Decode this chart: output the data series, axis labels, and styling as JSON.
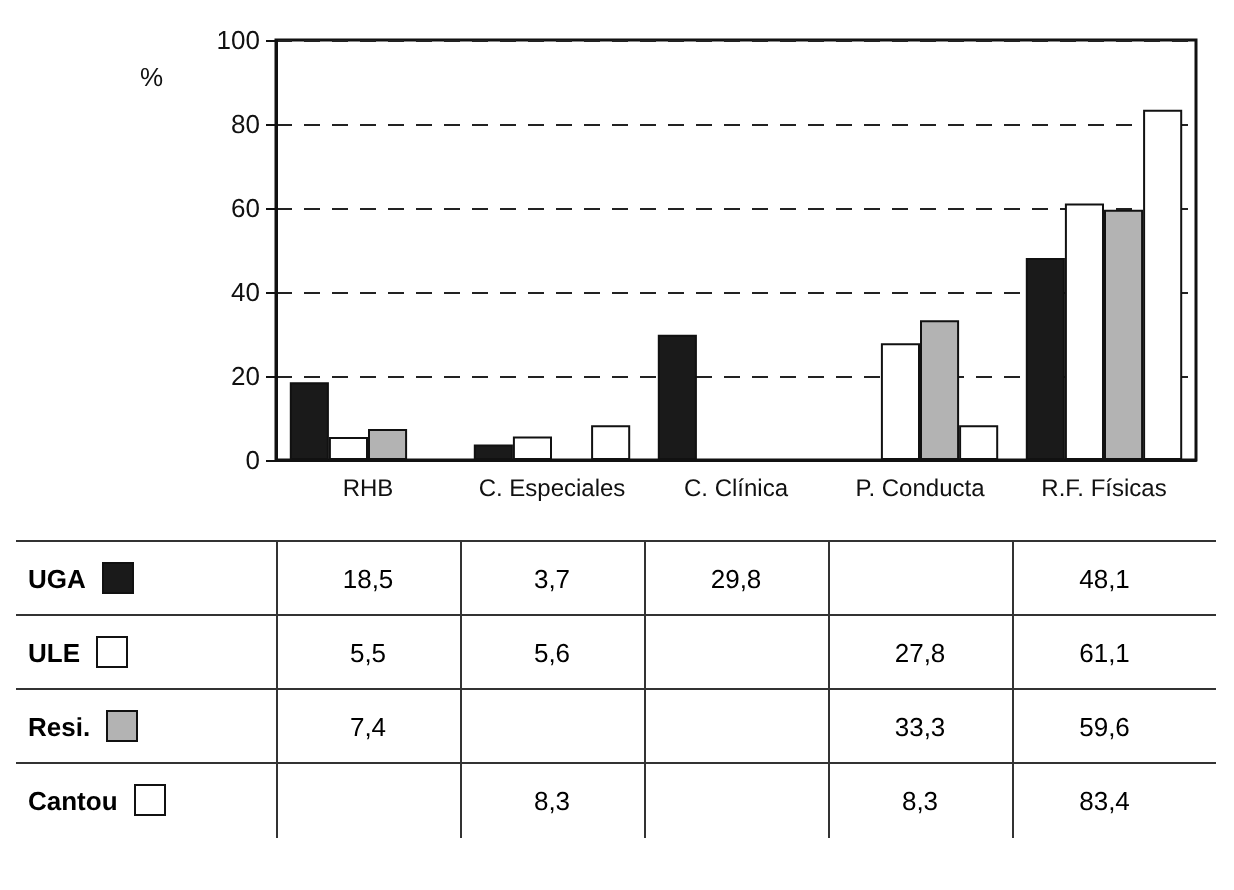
{
  "chart_data": {
    "type": "bar",
    "ylabel": "%",
    "categories": [
      "RHB",
      "C. Especiales",
      "C. Clínica",
      "P. Conducta",
      "R.F. Físicas"
    ],
    "series": [
      {
        "name": "UGA",
        "color": "#1a1a1a",
        "values": [
          18.5,
          3.7,
          29.8,
          null,
          48.1
        ],
        "value_labels": [
          "18,5",
          "3,7",
          "29,8",
          null,
          "48,1"
        ]
      },
      {
        "name": "ULE",
        "color": "#ffffff",
        "values": [
          5.5,
          5.6,
          null,
          27.8,
          61.1
        ],
        "value_labels": [
          "5,5",
          "5,6",
          null,
          "27,8",
          "61,1"
        ]
      },
      {
        "name": "Resi.",
        "color": "#b3b3b3",
        "values": [
          7.4,
          null,
          null,
          33.3,
          59.6
        ],
        "value_labels": [
          "7,4",
          null,
          null,
          "33,3",
          "59,6"
        ]
      },
      {
        "name": "Cantou",
        "color": "#ffffff",
        "values": [
          null,
          8.3,
          null,
          8.3,
          83.4
        ],
        "value_labels": [
          null,
          "8,3",
          null,
          "8,3",
          "83,4"
        ]
      }
    ],
    "ylim": [
      0,
      100
    ],
    "yticks": [
      0,
      20,
      40,
      60,
      80,
      100
    ],
    "grid": "y",
    "legend": "bottom"
  }
}
